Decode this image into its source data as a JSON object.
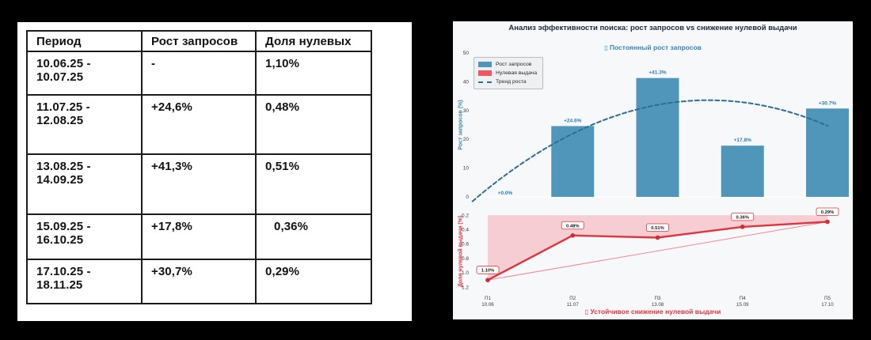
{
  "table_panel": {
    "headers": [
      "Период",
      "Рост запросов",
      "Доля нулевых"
    ],
    "rows": [
      {
        "period": "10.06.25 - 10.07.25",
        "growth": "-",
        "zero_share": "1,10%",
        "zero_indent": false
      },
      {
        "period": "11.07.25 - 12.08.25",
        "growth": "+24,6%",
        "zero_share": "0,48%",
        "zero_indent": false
      },
      {
        "period": "13.08.25 - 14.09.25",
        "growth": "+41,3%",
        "zero_share": "0,51%",
        "zero_indent": false
      },
      {
        "period": "15.09.25 - 16.10.25",
        "growth": "+17,8%",
        "zero_share": "0,36%",
        "zero_indent": true
      },
      {
        "period": "17.10.25 - 18.11.25",
        "growth": "+30,7%",
        "zero_share": "0,29%",
        "zero_indent": false
      }
    ]
  },
  "chart_panel": {
    "title": "Анализ эффективности поиска: рост запросов vs снижение нулевой выдачи",
    "top_subtitle": {
      "icon": "▯",
      "text": "Постоянный рост запросов"
    },
    "bottom_subtitle": {
      "icon": "▯",
      "text": "Устойчивое снижение нулевой выдачи"
    },
    "legend": [
      {
        "label": "Рост запросов",
        "swatch": "bar",
        "color": "#4f96ba"
      },
      {
        "label": "Нулевая выдача",
        "swatch": "bar",
        "color": "#ef5661"
      },
      {
        "label": "Тренд роста",
        "swatch": "dash",
        "color": "#2e6e99"
      }
    ],
    "colors": {
      "background": "#f7f8fa",
      "bar": "#4f96ba",
      "bar_label": "#2c7fae",
      "trend": "#2e6e99",
      "zero_line": "#e0353f",
      "zero_trend": "#ec8a90",
      "zero_fill": "#f5cdd2",
      "marker": "#d42a35",
      "tick_text": "#3c3c3c"
    }
  },
  "chart_data": [
    {
      "type": "bar",
      "annotation_title": "Постоянный рост запросов",
      "categories": [
        "П1",
        "П2",
        "П3",
        "П4",
        "П5"
      ],
      "category_dates": [
        "10.06",
        "11.07",
        "13.08",
        "15.09",
        "17.10"
      ],
      "series": [
        {
          "name": "Рост запросов",
          "type": "bar",
          "values": [
            0.0,
            24.6,
            41.3,
            17.8,
            30.7
          ],
          "labels": [
            "+0.0%",
            "+24.6%",
            "+41.3%",
            "+17.8%",
            "+30.7%"
          ]
        },
        {
          "name": "Тренд роста",
          "type": "dashed-quadratic-trend"
        }
      ],
      "ylabel": "Рост запросов (%)",
      "ylim": [
        0,
        50
      ],
      "yticks": [
        0,
        10,
        20,
        30,
        40,
        50
      ],
      "legend_entries": [
        "Рост запросов",
        "Нулевая выдача",
        "Тренд роста"
      ],
      "legend_position": "upper left",
      "grid": false
    },
    {
      "type": "line",
      "annotation_title": "Устойчивое снижение нулевой выдачи",
      "categories": [
        "П1",
        "П2",
        "П3",
        "П4",
        "П5"
      ],
      "category_dates": [
        "10.06",
        "11.07",
        "13.08",
        "15.09",
        "17.10"
      ],
      "series": [
        {
          "name": "Нулевая выдача",
          "values": [
            1.1,
            0.48,
            0.51,
            0.36,
            0.29
          ],
          "labels": [
            "1.10%",
            "0.48%",
            "0.51%",
            "0.36%",
            "0.29%"
          ]
        },
        {
          "name": "линейный тренд",
          "type": "straight-endpoints"
        }
      ],
      "ylabel": "Доля нулевой выдачи (%)",
      "ylim": [
        0.2,
        1.2
      ],
      "y_inverted": true,
      "yticks": [
        0.2,
        0.4,
        0.6,
        0.8,
        1.0,
        1.2
      ],
      "area_fill_to": 0.2,
      "grid": false
    }
  ]
}
